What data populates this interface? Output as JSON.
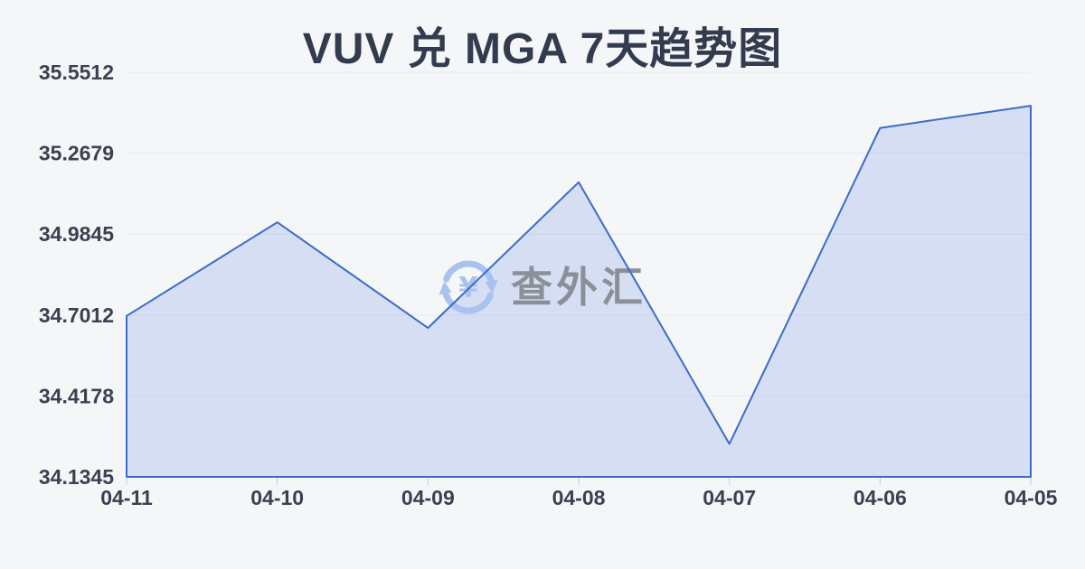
{
  "header": {
    "title": "VUV 兑 MGA 7天趋势图"
  },
  "watermark": {
    "text": "查外汇",
    "icon": "currency-exchange-refresh-icon",
    "currency_symbol": "¥"
  },
  "chart_data": {
    "type": "area",
    "title": "VUV 兑 MGA 7天趋势图",
    "categories": [
      "04-11",
      "04-10",
      "04-09",
      "04-08",
      "04-07",
      "04-06",
      "04-05"
    ],
    "values": [
      34.698,
      35.026,
      34.656,
      35.166,
      34.25,
      35.356,
      35.434
    ],
    "series_name": "VUV/MGA",
    "y_ticks": [
      "35.5512",
      "35.2679",
      "34.9845",
      "34.7012",
      "34.4178",
      "34.1345"
    ],
    "ylim": [
      34.1345,
      35.5512
    ],
    "xlabel": "",
    "ylabel": "",
    "grid": true,
    "legend": "none",
    "colors": {
      "line": "#3b6cc8",
      "fill": "rgba(80,115,220,0.18)",
      "grid_line": "#e7eaef",
      "axis_tick": "#c8cdd5",
      "axis_label": "#3a4150",
      "title": "#333c4e",
      "watermark_text": "#8b9098",
      "watermark_icon": "#a9c2ef",
      "background": "#f5f6f8"
    }
  }
}
